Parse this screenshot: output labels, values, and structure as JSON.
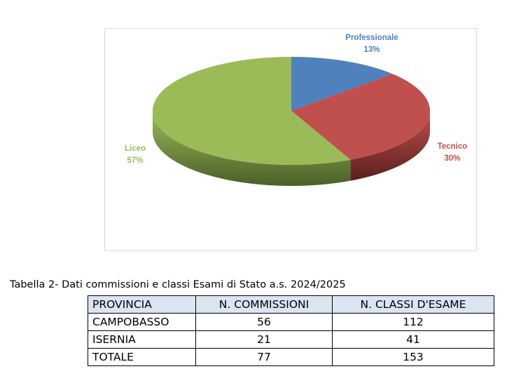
{
  "chart_data": {
    "type": "pie",
    "title": "",
    "slices": [
      {
        "label": "Professionale",
        "value": 13,
        "display": "13%",
        "color": "#4f81bd",
        "side": "#2f5d8c"
      },
      {
        "label": "Tecnico",
        "value": 30,
        "display": "30%",
        "color": "#c0504d",
        "side": "#5a1f1e"
      },
      {
        "label": "Liceo",
        "value": 57,
        "display": "57%",
        "color": "#9bbb59",
        "side": "#4a6028"
      }
    ],
    "label_colors": {
      "Professionale": "#4f81bd",
      "Tecnico": "#c0504d",
      "Liceo": "#9bbb59"
    }
  },
  "caption": "Tabella 2- Dati commissioni e classi Esami di Stato a.s. 2024/2025",
  "table": {
    "headers": [
      "PROVINCIA",
      "N. COMMISSIONI",
      "N. CLASSI D'ESAME"
    ],
    "rows": [
      [
        "CAMPOBASSO",
        "56",
        "112"
      ],
      [
        "ISERNIA",
        "21",
        "41"
      ],
      [
        "TOTALE",
        "77",
        "153"
      ]
    ],
    "header_bg": "#dbe5f1"
  }
}
